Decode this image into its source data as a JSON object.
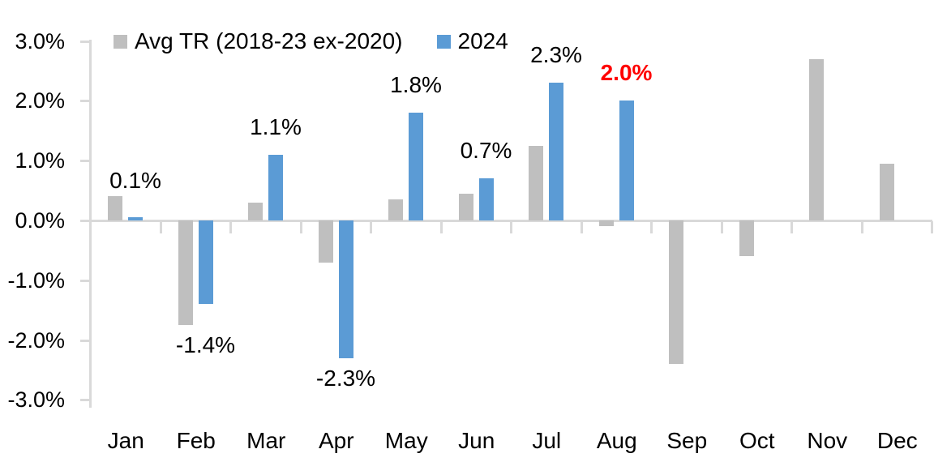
{
  "chart_data": {
    "type": "bar",
    "title": "",
    "categories": [
      "Jan",
      "Feb",
      "Mar",
      "Apr",
      "May",
      "Jun",
      "Jul",
      "Aug",
      "Sep",
      "Oct",
      "Nov",
      "Dec"
    ],
    "series": [
      {
        "name": "Avg TR (2018-23 ex-2020)",
        "color": "#BFBFBF",
        "values": [
          0.4,
          -1.75,
          0.3,
          -0.7,
          0.35,
          0.45,
          1.25,
          -0.1,
          -2.4,
          -0.6,
          2.7,
          0.95
        ]
      },
      {
        "name": "2024",
        "color": "#5B9BD5",
        "values": [
          0.05,
          -1.4,
          1.1,
          -2.3,
          1.8,
          0.7,
          2.3,
          2.0,
          null,
          null,
          null,
          null
        ]
      }
    ],
    "data_labels": [
      {
        "category": "Jan",
        "text": "0.1%",
        "color": "#000000",
        "bold": false
      },
      {
        "category": "Feb",
        "text": "-1.4%",
        "color": "#000000",
        "bold": false
      },
      {
        "category": "Mar",
        "text": "1.1%",
        "color": "#000000",
        "bold": false
      },
      {
        "category": "Apr",
        "text": "-2.3%",
        "color": "#000000",
        "bold": false
      },
      {
        "category": "May",
        "text": "1.8%",
        "color": "#000000",
        "bold": false
      },
      {
        "category": "Jun",
        "text": "0.7%",
        "color": "#000000",
        "bold": false
      },
      {
        "category": "Jul",
        "text": "2.3%",
        "color": "#000000",
        "bold": false
      },
      {
        "category": "Aug",
        "text": "2.0%",
        "color": "#FF0000",
        "bold": true
      },
      {
        "category": "Sep",
        "text": "",
        "color": "#000000",
        "bold": false
      },
      {
        "category": "Oct",
        "text": "",
        "color": "#000000",
        "bold": false
      },
      {
        "category": "Nov",
        "text": "",
        "color": "#000000",
        "bold": false
      },
      {
        "category": "Dec",
        "text": "",
        "color": "#000000",
        "bold": false
      }
    ],
    "y_ticks": [
      {
        "value": 3,
        "label": "3.0%"
      },
      {
        "value": 2,
        "label": "2.0%"
      },
      {
        "value": 1,
        "label": "1.0%"
      },
      {
        "value": 0,
        "label": "0.0%"
      },
      {
        "value": -1,
        "label": "-1.0%"
      },
      {
        "value": -2,
        "label": "-2.0%"
      },
      {
        "value": -3,
        "label": "-3.0%"
      }
    ],
    "ylim": [
      -3,
      3
    ],
    "grid": false,
    "legend_position": "top-left",
    "axis_color": "#D9D9D9",
    "text_color": "#000000",
    "highlight_color": "#FF0000"
  }
}
